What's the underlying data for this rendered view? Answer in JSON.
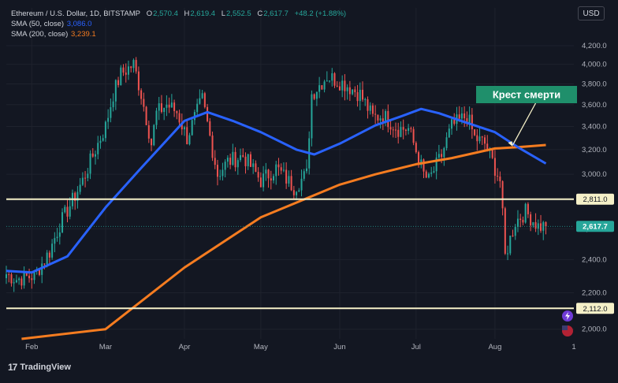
{
  "legend": {
    "symbol": "Ethereum / U.S. Dollar, 1D, BITSTAMP",
    "o_label": "O",
    "o": "2,570.4",
    "h_label": "H",
    "h": "2,619.4",
    "l_label": "L",
    "l": "2,552.5",
    "c_label": "C",
    "c": "2,617.7",
    "change": "+48.2 (+1.88%)",
    "sma50_label": "SMA (50, close)",
    "sma50_value": "3,086.0",
    "sma200_label": "SMA (200, close)",
    "sma200_value": "3,239.1"
  },
  "currency_button": "USD",
  "brand": "TradingView",
  "brand_mark": "17",
  "colors": {
    "background": "#131722",
    "up": "#26a69a",
    "down": "#ef5350",
    "sma50": "#2962ff",
    "sma200": "#f57c20",
    "level": "#f5f0c8",
    "annotation_bg": "#1f8f6b",
    "current_price_tag": "#26a69a"
  },
  "chart_data": {
    "type": "candlestick",
    "y_scale": "log",
    "ylim": [
      1950,
      4450
    ],
    "y_ticks": [
      {
        "value": 2000,
        "label": "2,000.0"
      },
      {
        "value": 2200,
        "label": "2,200.0"
      },
      {
        "value": 2400,
        "label": "2,400.0"
      },
      {
        "value": 2600,
        "label": "2,600.0"
      },
      {
        "value": 2800,
        "label": "2,800.0"
      },
      {
        "value": 3000,
        "label": "3,000.0"
      },
      {
        "value": 3200,
        "label": "3,200.0"
      },
      {
        "value": 3400,
        "label": "3,400.0"
      },
      {
        "value": 3600,
        "label": "3,600.0"
      },
      {
        "value": 3800,
        "label": "3,800.0"
      },
      {
        "value": 4000,
        "label": "4,000.0"
      },
      {
        "value": 4200,
        "label": "4,200.0"
      }
    ],
    "x_ticks": [
      {
        "date": "2024-02-01",
        "label": "Feb"
      },
      {
        "date": "2024-03-01",
        "label": "Mar"
      },
      {
        "date": "2024-04-01",
        "label": "Apr"
      },
      {
        "date": "2024-05-01",
        "label": "May"
      },
      {
        "date": "2024-06-01",
        "label": "Jun"
      },
      {
        "date": "2024-07-01",
        "label": "Jul"
      },
      {
        "date": "2024-08-01",
        "label": "Aug"
      },
      {
        "date": "2024-09-01",
        "label": "1"
      }
    ],
    "x_range": [
      "2024-01-22",
      "2024-09-01"
    ],
    "price_anchors": [
      [
        "2024-01-22",
        2310
      ],
      [
        "2024-01-26",
        2280
      ],
      [
        "2024-02-02",
        2300
      ],
      [
        "2024-02-08",
        2450
      ],
      [
        "2024-02-12",
        2630
      ],
      [
        "2024-02-17",
        2800
      ],
      [
        "2024-02-21",
        2950
      ],
      [
        "2024-02-26",
        3200
      ],
      [
        "2024-03-01",
        3400
      ],
      [
        "2024-03-04",
        3700
      ],
      [
        "2024-03-07",
        3900
      ],
      [
        "2024-03-12",
        4000
      ],
      [
        "2024-03-15",
        3700
      ],
      [
        "2024-03-19",
        3250
      ],
      [
        "2024-03-21",
        3520
      ],
      [
        "2024-03-25",
        3600
      ],
      [
        "2024-03-29",
        3530
      ],
      [
        "2024-04-02",
        3300
      ],
      [
        "2024-04-08",
        3650
      ],
      [
        "2024-04-12",
        3200
      ],
      [
        "2024-04-14",
        3000
      ],
      [
        "2024-04-18",
        3100
      ],
      [
        "2024-04-24",
        3150
      ],
      [
        "2024-05-01",
        2950
      ],
      [
        "2024-05-07",
        3050
      ],
      [
        "2024-05-14",
        2900
      ],
      [
        "2024-05-19",
        3000
      ],
      [
        "2024-05-21",
        3700
      ],
      [
        "2024-05-27",
        3880
      ],
      [
        "2024-06-03",
        3800
      ],
      [
        "2024-06-09",
        3700
      ],
      [
        "2024-06-14",
        3480
      ],
      [
        "2024-06-18",
        3500
      ],
      [
        "2024-06-24",
        3380
      ],
      [
        "2024-06-28",
        3380
      ],
      [
        "2024-07-04",
        3000
      ],
      [
        "2024-07-06",
        2950
      ],
      [
        "2024-07-11",
        3150
      ],
      [
        "2024-07-15",
        3400
      ],
      [
        "2024-07-21",
        3500
      ],
      [
        "2024-07-24",
        3300
      ],
      [
        "2024-07-28",
        3250
      ],
      [
        "2024-08-03",
        2950
      ],
      [
        "2024-08-05",
        2420
      ],
      [
        "2024-08-09",
        2650
      ],
      [
        "2024-08-13",
        2720
      ],
      [
        "2024-08-18",
        2620
      ],
      [
        "2024-08-21",
        2617.7
      ]
    ],
    "sma50": [
      [
        "2024-01-22",
        2330
      ],
      [
        "2024-02-01",
        2320
      ],
      [
        "2024-02-15",
        2420
      ],
      [
        "2024-03-01",
        2750
      ],
      [
        "2024-03-15",
        3050
      ],
      [
        "2024-04-01",
        3450
      ],
      [
        "2024-04-10",
        3530
      ],
      [
        "2024-04-20",
        3450
      ],
      [
        "2024-05-01",
        3350
      ],
      [
        "2024-05-15",
        3200
      ],
      [
        "2024-05-22",
        3160
      ],
      [
        "2024-06-01",
        3250
      ],
      [
        "2024-06-15",
        3410
      ],
      [
        "2024-06-25",
        3490
      ],
      [
        "2024-07-03",
        3560
      ],
      [
        "2024-07-10",
        3520
      ],
      [
        "2024-07-20",
        3440
      ],
      [
        "2024-08-01",
        3350
      ],
      [
        "2024-08-10",
        3220
      ],
      [
        "2024-08-21",
        3086.0
      ]
    ],
    "sma200": [
      [
        "2024-01-28",
        1950
      ],
      [
        "2024-03-01",
        2000
      ],
      [
        "2024-04-01",
        2350
      ],
      [
        "2024-05-01",
        2680
      ],
      [
        "2024-06-01",
        2920
      ],
      [
        "2024-06-15",
        3000
      ],
      [
        "2024-07-01",
        3080
      ],
      [
        "2024-07-15",
        3130
      ],
      [
        "2024-08-01",
        3210
      ],
      [
        "2024-08-10",
        3220
      ],
      [
        "2024-08-21",
        3239.1
      ]
    ],
    "levels": [
      {
        "value": 2811.0,
        "label": "2,811.0"
      },
      {
        "value": 2112.0,
        "label": "2,112.0"
      }
    ],
    "current_price": {
      "value": 2617.7,
      "label": "2,617.7"
    },
    "annotation": {
      "text": "Крест смерти",
      "target_date": "2024-08-08",
      "target_value": 3225
    }
  }
}
